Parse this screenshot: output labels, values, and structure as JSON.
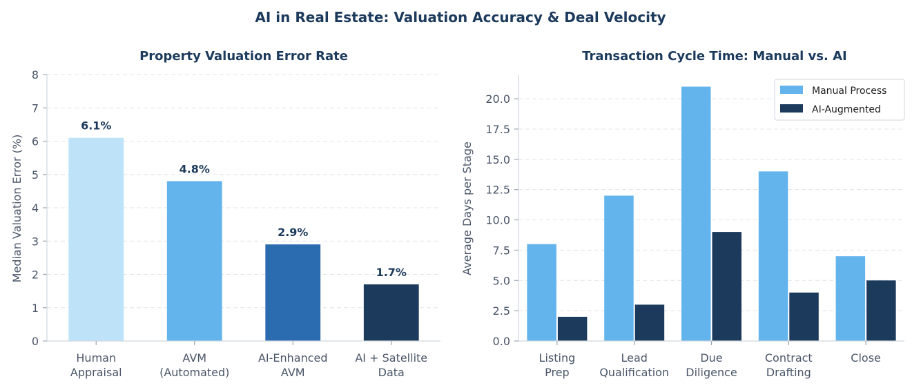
{
  "title": "AI in Real Estate: Valuation Accuracy & Deal Velocity",
  "chart_data": [
    {
      "type": "bar",
      "title": "Property Valuation Error Rate",
      "xlabel": "",
      "ylabel": "Median Valuation Error (%)",
      "ylim": [
        0,
        8
      ],
      "yticks": [
        0,
        1,
        2,
        3,
        4,
        5,
        6,
        7,
        8
      ],
      "grid": true,
      "categories": [
        [
          "Human",
          "Appraisal"
        ],
        [
          "AVM",
          "(Automated)"
        ],
        [
          "AI-Enhanced",
          "AVM"
        ],
        [
          "AI + Satellite",
          "Data"
        ]
      ],
      "values": [
        6.1,
        4.8,
        2.9,
        1.7
      ],
      "data_labels": [
        "6.1%",
        "4.8%",
        "2.9%",
        "1.7%"
      ],
      "colors": [
        "#bee3f8",
        "#63b3ed",
        "#2b6cb0",
        "#1c3a5c"
      ]
    },
    {
      "type": "bar",
      "title": "Transaction Cycle Time: Manual vs. AI",
      "xlabel": "",
      "ylabel": "Average Days per Stage",
      "ylim": [
        0,
        22
      ],
      "yticks": [
        0.0,
        2.5,
        5.0,
        7.5,
        10.0,
        12.5,
        15.0,
        17.5,
        20.0
      ],
      "ytick_labels": [
        "0.0",
        "2.5",
        "5.0",
        "7.5",
        "10.0",
        "12.5",
        "15.0",
        "17.5",
        "20.0"
      ],
      "grid": true,
      "legend": "top-right",
      "categories": [
        [
          "Listing",
          "Prep"
        ],
        [
          "Lead",
          "Qualification"
        ],
        [
          "Due",
          "Diligence"
        ],
        [
          "Contract",
          "Drafting"
        ],
        [
          "Close"
        ]
      ],
      "series": [
        {
          "name": "Manual Process",
          "values": [
            8,
            12,
            21,
            14,
            7
          ],
          "color": "#63b3ed"
        },
        {
          "name": "AI-Augmented",
          "values": [
            2,
            3,
            9,
            4,
            5
          ],
          "color": "#1c3a5c"
        }
      ]
    }
  ]
}
